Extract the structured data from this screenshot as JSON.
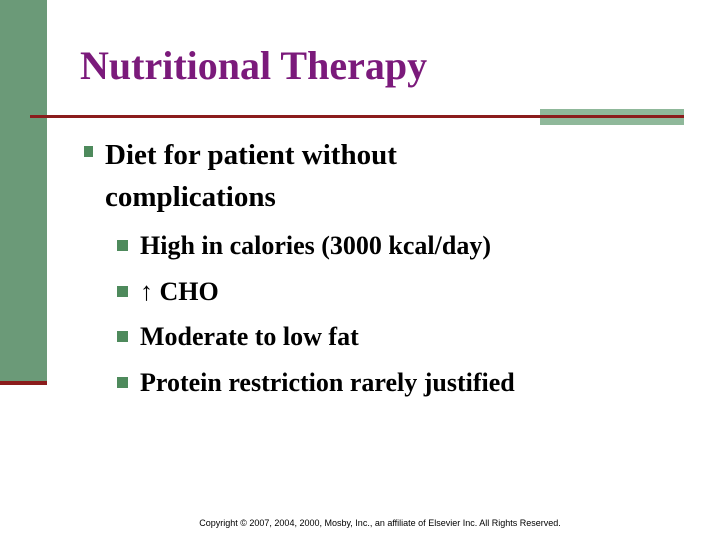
{
  "title": "Nutritional Therapy",
  "bullets": [
    {
      "text": "Diet for patient without complications",
      "sub_bullets": [
        "High in calories (3000 kcal/day)",
        "↑ CHO",
        "Moderate to low fat",
        "Protein restriction rarely justified"
      ]
    }
  ],
  "footer": "Copyright © 2007, 2004, 2000, Mosby, Inc., an affiliate of Elsevier Inc. All Rights Reserved."
}
